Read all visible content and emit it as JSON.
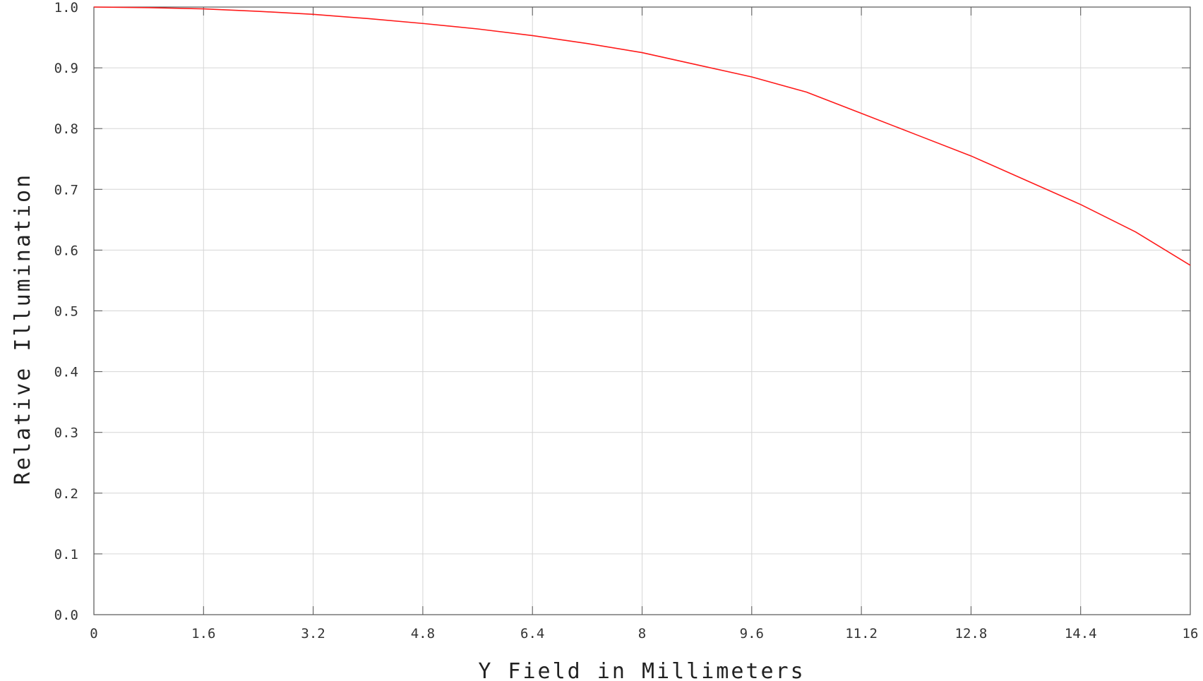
{
  "chart_data": {
    "type": "line",
    "title": "",
    "xlabel": "Y Field in Millimeters",
    "ylabel": "Relative Illumination",
    "xlim": [
      0,
      16
    ],
    "ylim": [
      0,
      1.0
    ],
    "x_ticks": [
      "0",
      "1.6",
      "3.2",
      "4.8",
      "6.4",
      "8",
      "9.6",
      "11.2",
      "12.8",
      "14.4",
      "16"
    ],
    "y_ticks": [
      "0.0",
      "0.1",
      "0.2",
      "0.3",
      "0.4",
      "0.5",
      "0.6",
      "0.7",
      "0.8",
      "0.9",
      "1.0"
    ],
    "grid": true,
    "legend": "none",
    "series": [
      {
        "color": "#ff1a1a",
        "x": [
          0,
          0.8,
          1.6,
          2.4,
          3.2,
          4.0,
          4.8,
          5.6,
          6.4,
          7.2,
          8.0,
          8.8,
          9.6,
          10.4,
          11.2,
          12.0,
          12.8,
          13.6,
          14.4,
          15.2,
          16.0
        ],
        "y": [
          1.0,
          0.999,
          0.997,
          0.993,
          0.988,
          0.981,
          0.973,
          0.964,
          0.953,
          0.94,
          0.925,
          0.905,
          0.885,
          0.86,
          0.825,
          0.79,
          0.755,
          0.715,
          0.675,
          0.63,
          0.575
        ]
      }
    ]
  }
}
